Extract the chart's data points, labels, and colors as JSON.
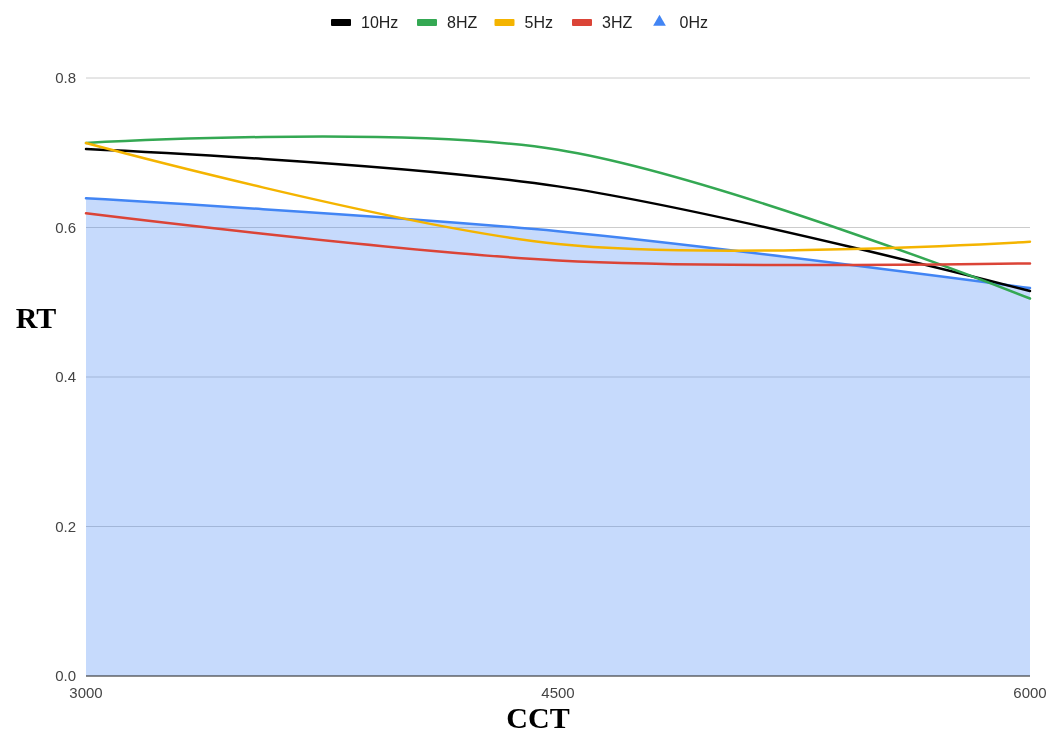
{
  "chart_data": {
    "type": "line",
    "xlabel": "CCT",
    "ylabel": "RT",
    "x": [
      3000,
      4500,
      6000
    ],
    "xlim": [
      3000,
      6000
    ],
    "xticks": [
      3000,
      4500,
      6000
    ],
    "ylim": [
      0,
      0.8
    ],
    "yticks": [
      {
        "value": 0,
        "label": "0.0"
      },
      {
        "value": 0.2,
        "label": "0.2"
      },
      {
        "value": 0.4,
        "label": "0.4"
      },
      {
        "value": 0.6,
        "label": "0.6"
      },
      {
        "value": 0.8,
        "label": "0.8"
      }
    ],
    "grid": "y",
    "legend": "top",
    "marker": "none",
    "series": [
      {
        "name": "10Hz",
        "color": "#000000",
        "values": [
          0.705,
          0.655,
          0.515
        ]
      },
      {
        "name": "8HZ",
        "color": "#34a853",
        "values": [
          0.713,
          0.704,
          0.505
        ]
      },
      {
        "name": "5Hz",
        "color": "#f4b400",
        "values": [
          0.713,
          0.578,
          0.581
        ]
      },
      {
        "name": "3HZ",
        "color": "#db4437",
        "values": [
          0.619,
          0.556,
          0.552
        ]
      },
      {
        "name": "0Hz",
        "type": "area",
        "color": "#4285f4",
        "values": [
          0.639,
          0.595,
          0.519
        ]
      }
    ]
  }
}
